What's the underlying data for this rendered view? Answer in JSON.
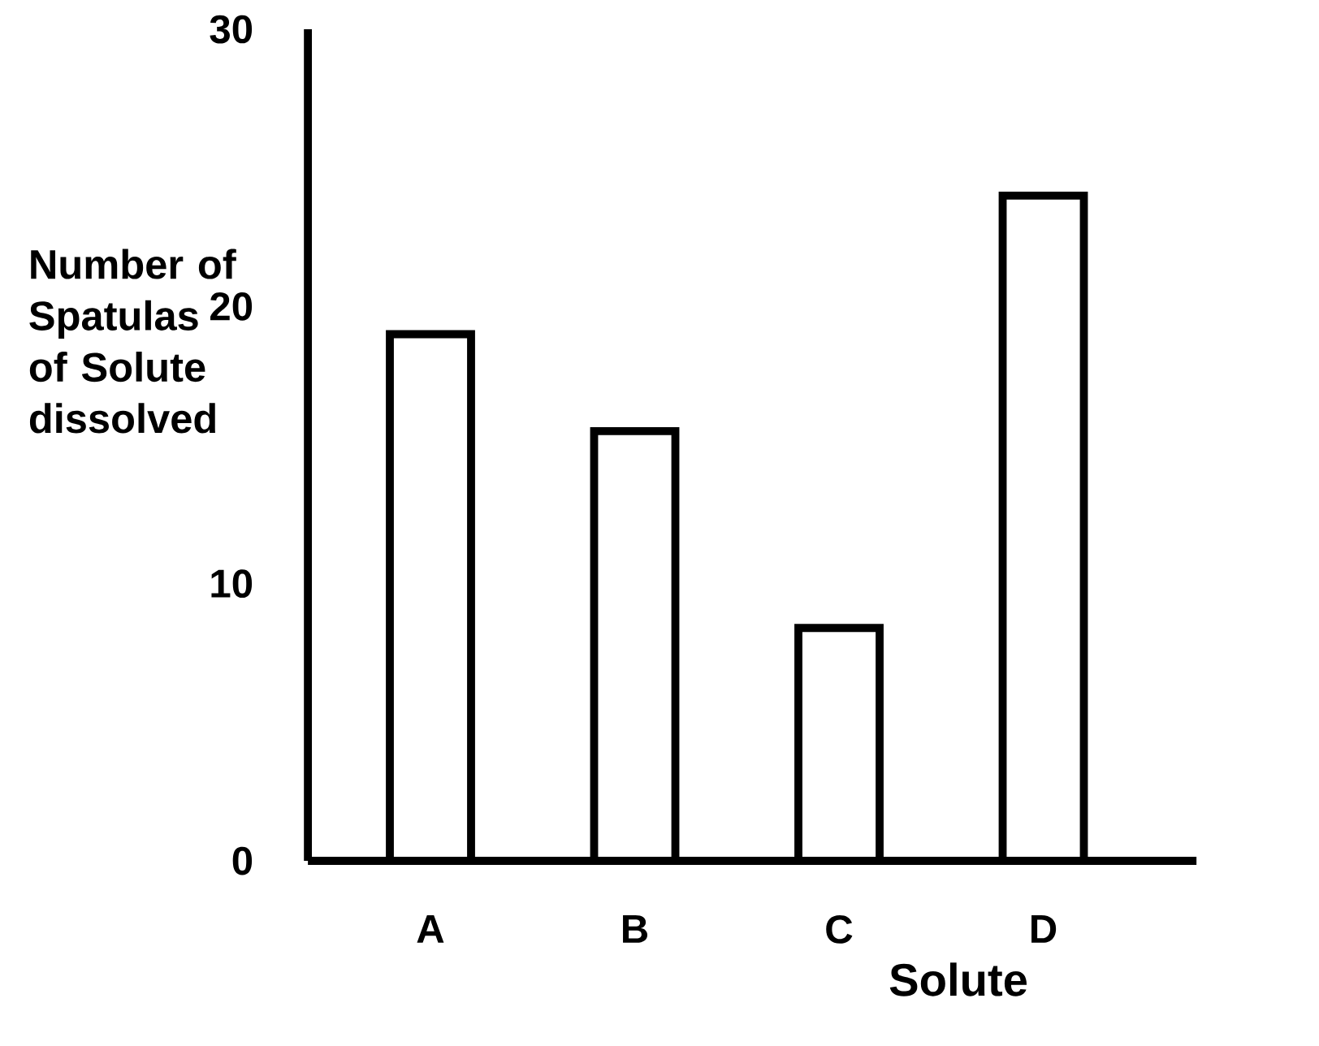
{
  "chart_data": {
    "type": "bar",
    "xlabel": "Solute",
    "ylabel": "Number of Spatulas of Solute dissolved",
    "categories": [
      "A",
      "B",
      "C",
      "D"
    ],
    "values": [
      19,
      15.5,
      8.4,
      24
    ],
    "color": "#000000",
    "ylim": [
      0,
      30
    ],
    "yticks": [
      0,
      10,
      20,
      30
    ],
    "grid": false
  }
}
